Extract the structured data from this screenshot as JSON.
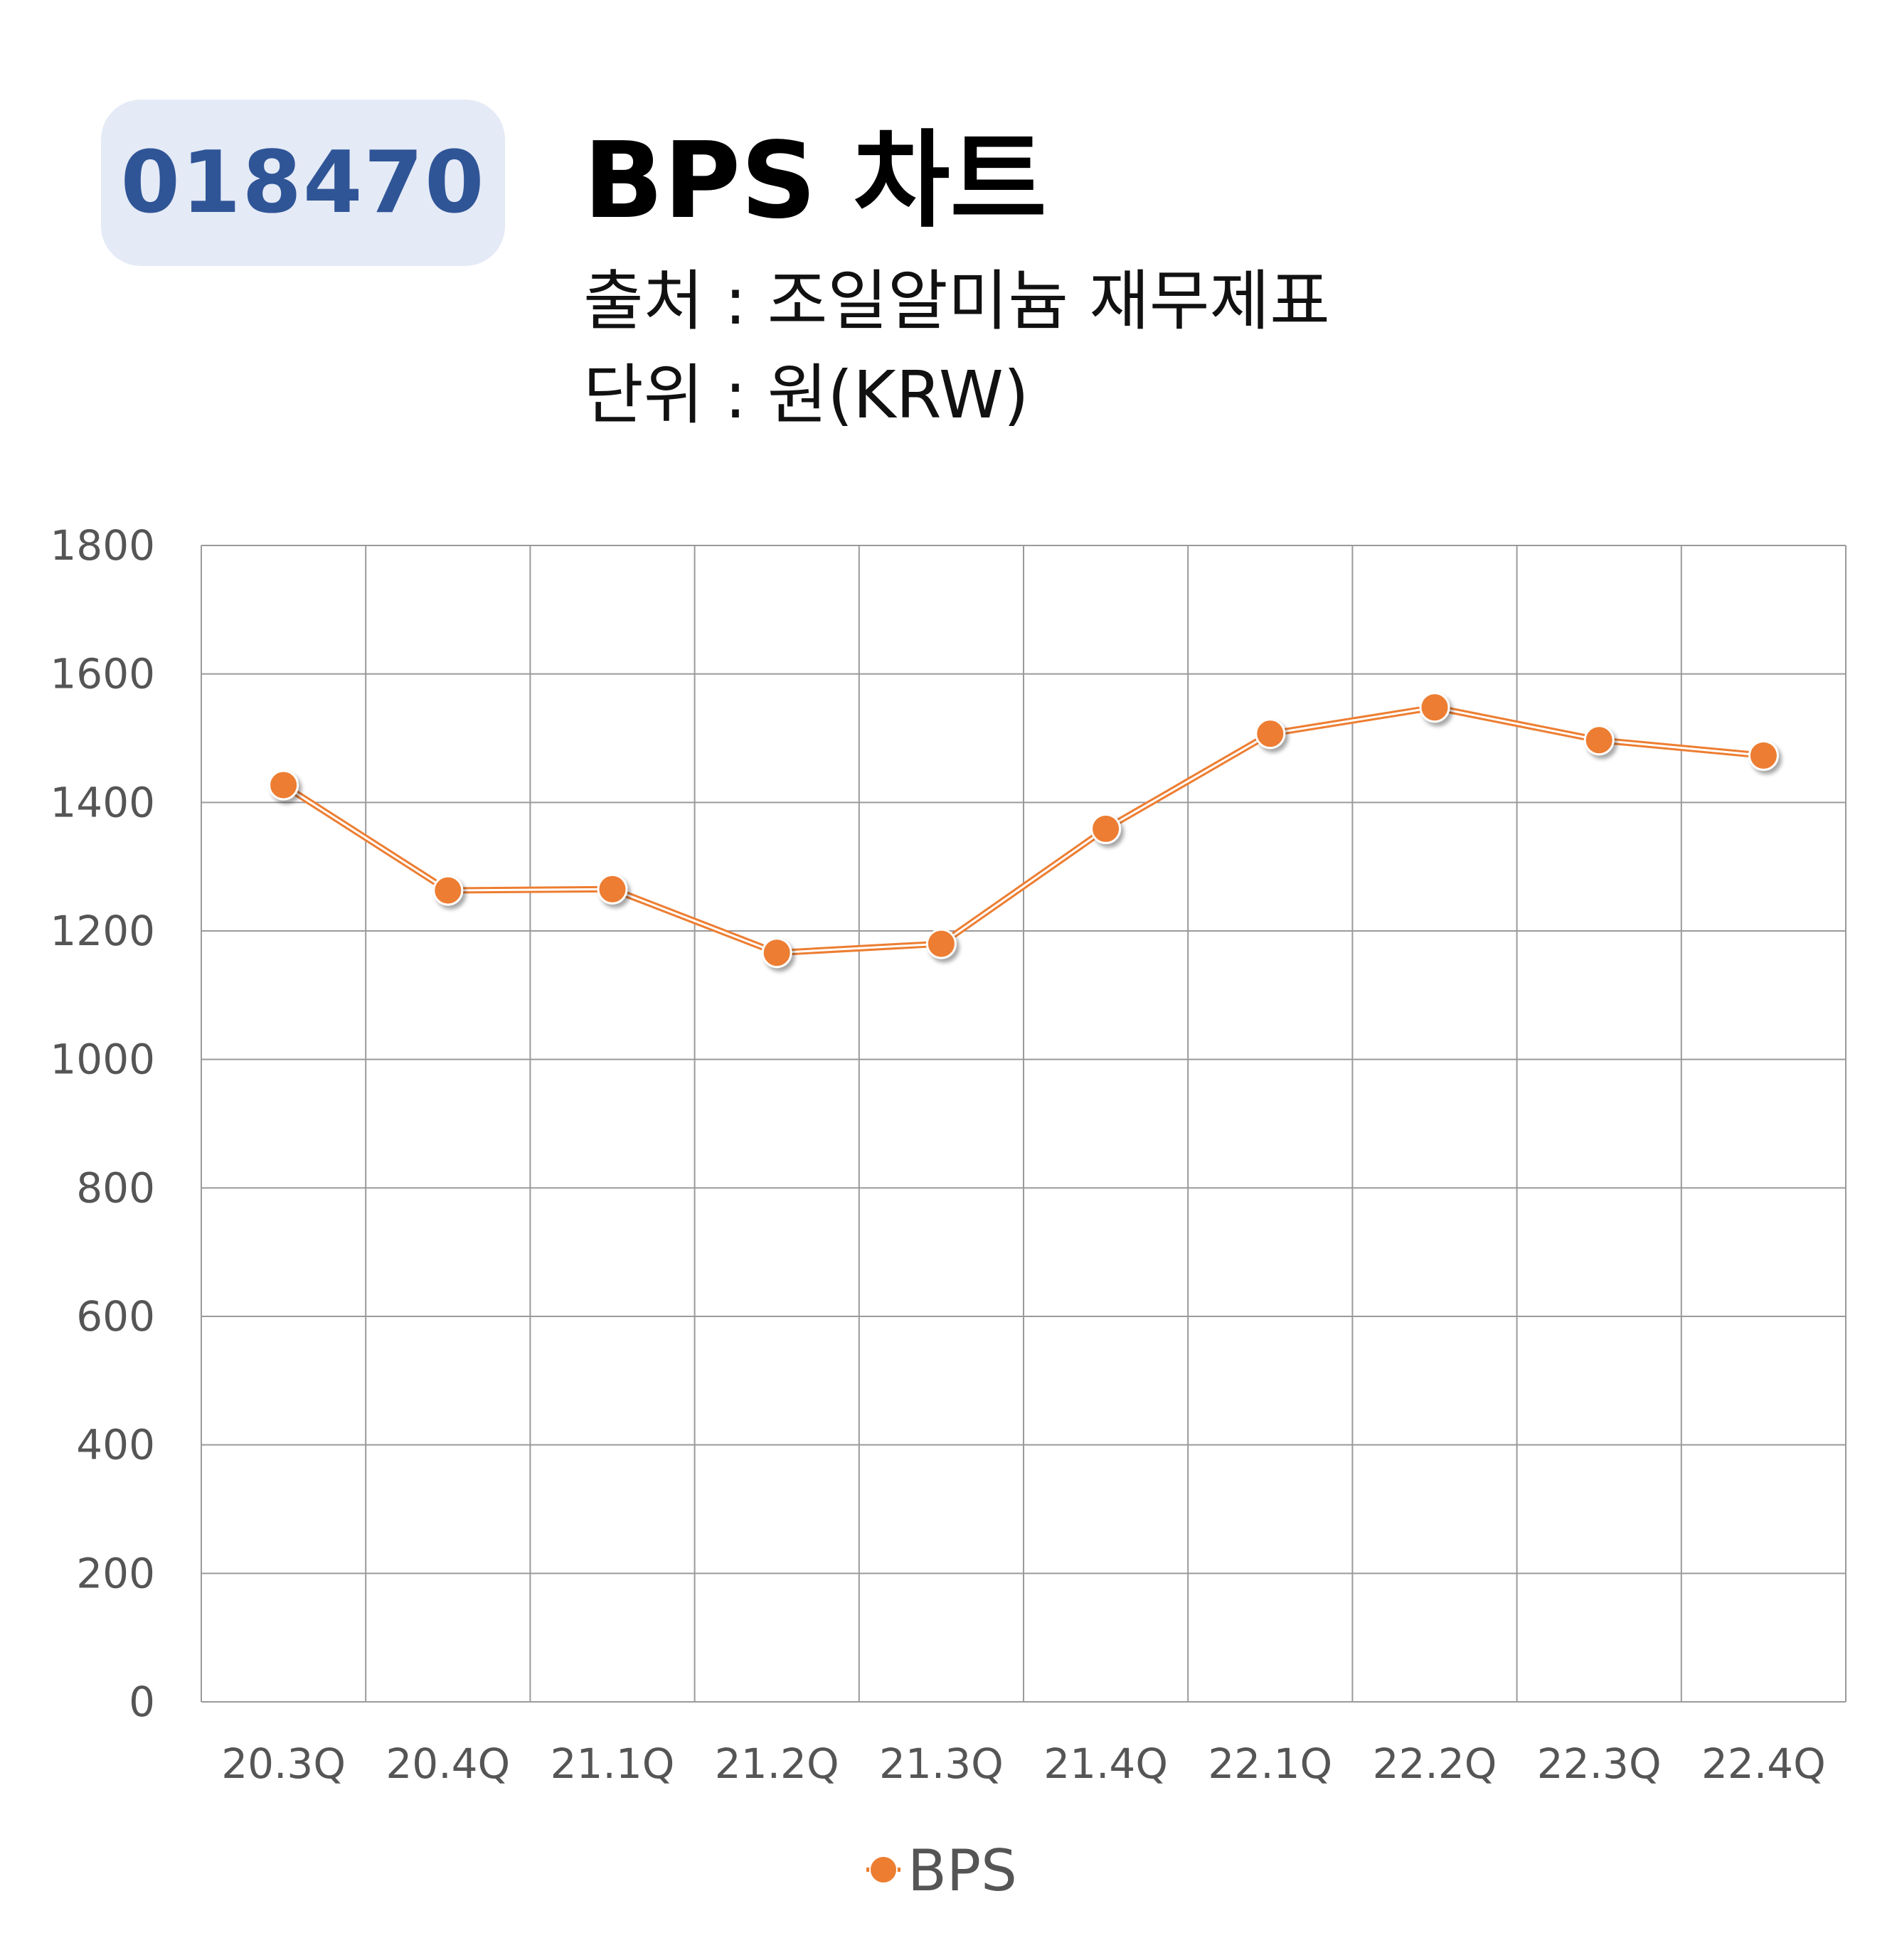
{
  "header": {
    "code_badge": "018470",
    "title": "BPS 차트",
    "source": "출처 : 조일알미늄 재무제표",
    "unit": "단위 : 원(KRW)"
  },
  "chart_data": {
    "type": "line",
    "categories": [
      "20.3Q",
      "20.4Q",
      "21.1Q",
      "21.2Q",
      "21.3Q",
      "21.4Q",
      "22.1Q",
      "22.2Q",
      "22.3Q",
      "22.4Q"
    ],
    "series": [
      {
        "name": "BPS",
        "values": [
          1427,
          1263,
          1265,
          1166,
          1180,
          1359,
          1507,
          1548,
          1497,
          1473
        ],
        "color": "#ed7d31"
      }
    ],
    "ylim": [
      0,
      1800
    ],
    "yticks": [
      "0",
      "200",
      "400",
      "600",
      "800",
      "1000",
      "1200",
      "1400",
      "1600",
      "1800"
    ],
    "grid": true,
    "legend": "bottom-center",
    "xlabel": "",
    "ylabel": ""
  }
}
